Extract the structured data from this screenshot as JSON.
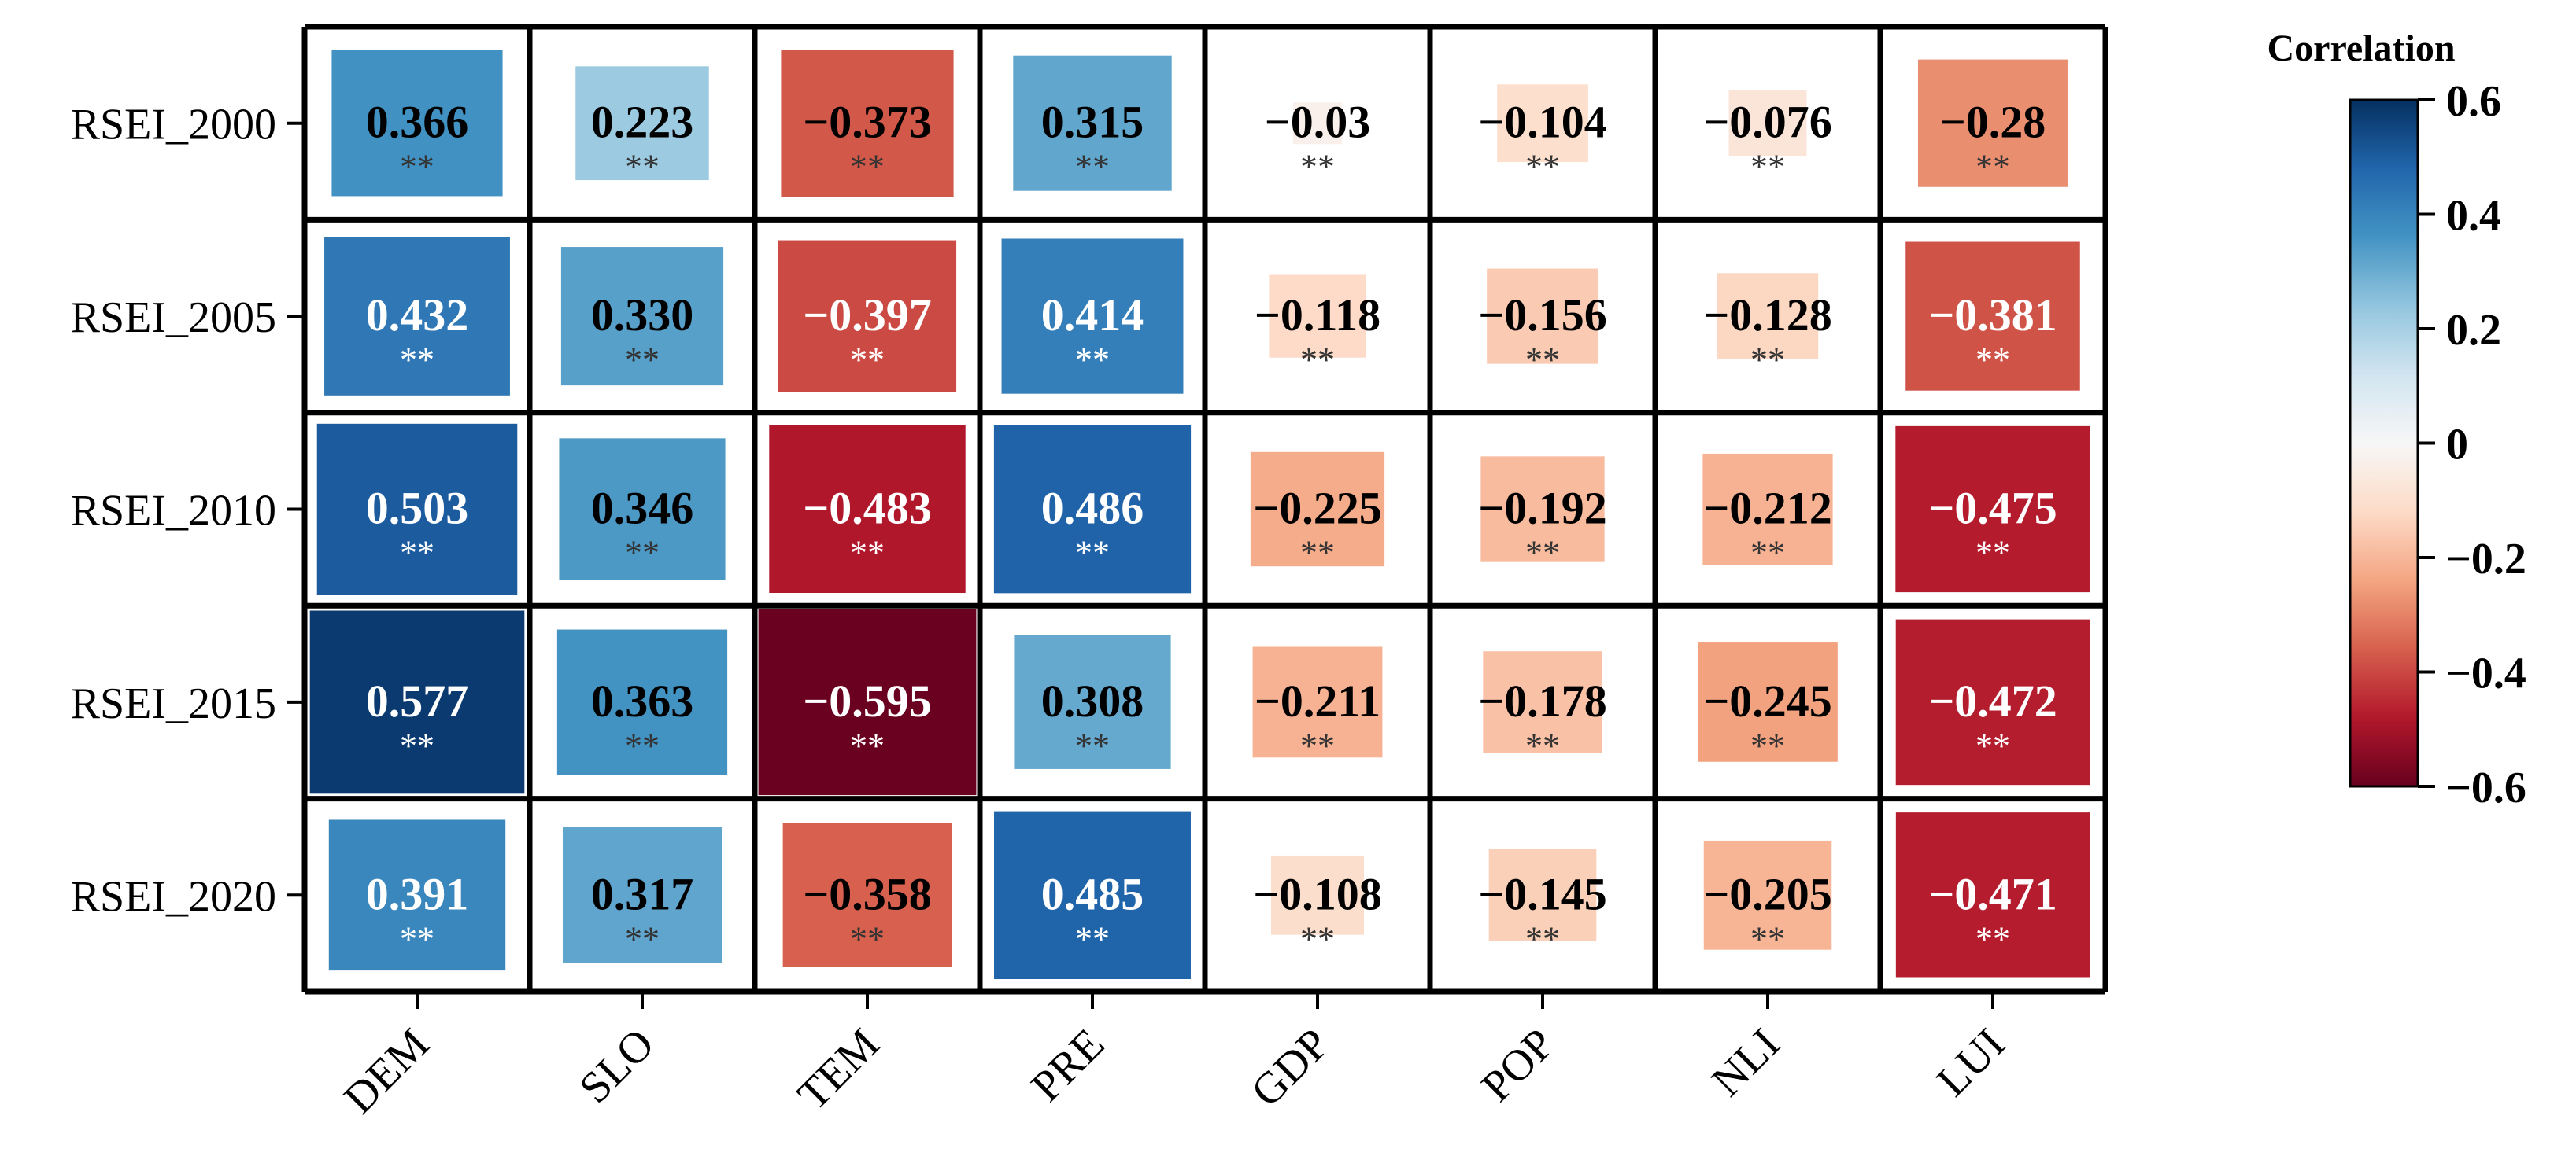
{
  "chart_data": {
    "type": "heatmap",
    "title": "",
    "xlabel": "",
    "ylabel": "",
    "x_categories": [
      "DEM",
      "SLO",
      "TEM",
      "PRE",
      "GDP",
      "POP",
      "NLI",
      "LUI"
    ],
    "y_categories": [
      "RSEI_2000",
      "RSEI_2005",
      "RSEI_2010",
      "RSEI_2015",
      "RSEI_2020"
    ],
    "values": [
      [
        0.366,
        0.223,
        -0.373,
        0.315,
        -0.03,
        -0.104,
        -0.076,
        -0.28
      ],
      [
        0.432,
        0.33,
        -0.397,
        0.414,
        -0.118,
        -0.156,
        -0.128,
        -0.381
      ],
      [
        0.503,
        0.346,
        -0.483,
        0.486,
        -0.225,
        -0.192,
        -0.212,
        -0.475
      ],
      [
        0.577,
        0.363,
        -0.595,
        0.308,
        -0.211,
        -0.178,
        -0.245,
        -0.472
      ],
      [
        0.391,
        0.317,
        -0.358,
        0.485,
        -0.108,
        -0.145,
        -0.205,
        -0.471
      ]
    ],
    "value_labels": [
      [
        "0.366",
        "0.223",
        "−0.373",
        "0.315",
        "−0.03",
        "−0.104",
        "−0.076",
        "−0.28"
      ],
      [
        "0.432",
        "0.330",
        "−0.397",
        "0.414",
        "−0.118",
        "−0.156",
        "−0.128",
        "−0.381"
      ],
      [
        "0.503",
        "0.346",
        "−0.483",
        "0.486",
        "−0.225",
        "−0.192",
        "−0.212",
        "−0.475"
      ],
      [
        "0.577",
        "0.363",
        "−0.595",
        "0.308",
        "−0.211",
        "−0.178",
        "−0.245",
        "−0.472"
      ],
      [
        "0.391",
        "0.317",
        "−0.358",
        "0.485",
        "−0.108",
        "−0.145",
        "−0.205",
        "−0.471"
      ]
    ],
    "significance": "**",
    "cell_size_encodes": "absolute correlation",
    "colorbar": {
      "title": "Correlation",
      "range": [
        -0.6,
        0.6
      ],
      "ticks": [
        0.6,
        0.4,
        0.2,
        0,
        -0.2,
        -0.4,
        -0.6
      ],
      "tick_labels": [
        "0.6",
        "0.4",
        "0.2",
        "0",
        "−0.2",
        "−0.4",
        "−0.6"
      ],
      "colormap": "RdBu",
      "colors": [
        "#67001f",
        "#b2182b",
        "#d6604d",
        "#f4a582",
        "#fddbc7",
        "#f7f7f7",
        "#d1e5f0",
        "#92c5de",
        "#4393c3",
        "#2166ac",
        "#053061"
      ]
    },
    "grid": true,
    "legend": "right"
  }
}
